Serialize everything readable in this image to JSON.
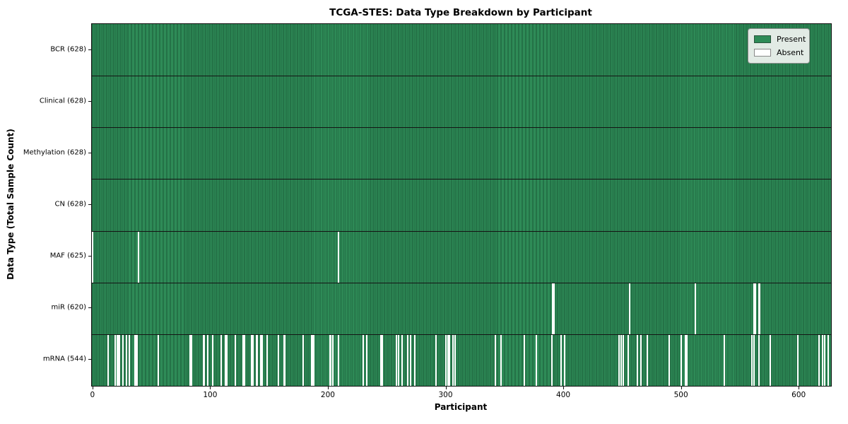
{
  "figure": {
    "title": "TCGA-STES: Data Type Breakdown by Participant",
    "xlabel": "Participant",
    "ylabel": "Data Type (Total Sample Count)"
  },
  "legend": {
    "position": "upper right",
    "items": [
      {
        "label": "Present",
        "color": "#2e8b57"
      },
      {
        "label": "Absent",
        "color": "#ffffff"
      }
    ]
  },
  "chart_data": {
    "type": "heatmap",
    "title": "TCGA-STES: Data Type Breakdown by Participant",
    "xlabel": "Participant",
    "ylabel": "Data Type (Total Sample Count)",
    "n_participants": 628,
    "xlim": [
      -0.5,
      627.5
    ],
    "x_ticks": [
      0,
      100,
      200,
      300,
      400,
      500,
      600
    ],
    "grid": false,
    "legend_position": "upper right",
    "colors": {
      "present": "#2e8b57",
      "absent": "#ffffff",
      "bar_edge": "#1e5c3c",
      "row_separator": "#141414"
    },
    "rows": [
      {
        "data_type": "BCR",
        "label": "BCR (628)",
        "present_count": 628,
        "absent_participants": []
      },
      {
        "data_type": "Clinical",
        "label": "Clinical (628)",
        "present_count": 628,
        "absent_participants": []
      },
      {
        "data_type": "Methylation",
        "label": "Methylation (628)",
        "present_count": 628,
        "absent_participants": []
      },
      {
        "data_type": "CN",
        "label": "CN (628)",
        "present_count": 628,
        "absent_participants": []
      },
      {
        "data_type": "MAF",
        "label": "MAF (625)",
        "present_count": 625,
        "absent_participants": [
          0,
          39,
          209
        ]
      },
      {
        "data_type": "miR",
        "label": "miR (620)",
        "present_count": 620,
        "absent_participants": [
          391,
          392,
          456,
          512,
          562,
          563,
          566,
          567
        ]
      },
      {
        "data_type": "mRNA",
        "label": "mRNA (544)",
        "present_count": 544,
        "absent_participants": [
          13,
          19,
          21,
          22,
          23,
          26,
          29,
          31,
          36,
          37,
          38,
          56,
          83,
          84,
          94,
          95,
          98,
          102,
          109,
          113,
          114,
          121,
          128,
          129,
          135,
          136,
          139,
          140,
          143,
          144,
          148,
          158,
          163,
          179,
          186,
          187,
          188,
          202,
          204,
          209,
          230,
          233,
          245,
          246,
          258,
          260,
          263,
          268,
          270,
          274,
          292,
          300,
          302,
          303,
          306,
          308,
          342,
          347,
          367,
          377,
          390,
          398,
          401,
          447,
          449,
          451,
          455,
          463,
          466,
          471,
          490,
          500,
          504,
          505,
          537,
          560,
          562,
          566,
          576,
          599,
          617,
          620,
          622,
          625
        ]
      }
    ]
  }
}
